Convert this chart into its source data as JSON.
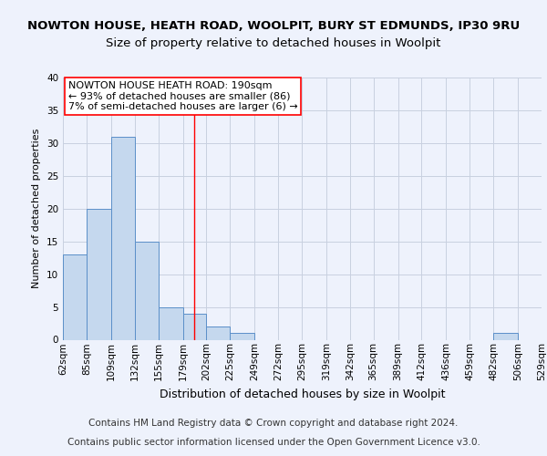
{
  "title_line1": "NOWTON HOUSE, HEATH ROAD, WOOLPIT, BURY ST EDMUNDS, IP30 9RU",
  "title_line2": "Size of property relative to detached houses in Woolpit",
  "xlabel": "Distribution of detached houses by size in Woolpit",
  "ylabel": "Number of detached properties",
  "bin_labels": [
    "62sqm",
    "85sqm",
    "109sqm",
    "132sqm",
    "155sqm",
    "179sqm",
    "202sqm",
    "225sqm",
    "249sqm",
    "272sqm",
    "295sqm",
    "319sqm",
    "342sqm",
    "365sqm",
    "389sqm",
    "412sqm",
    "436sqm",
    "459sqm",
    "482sqm",
    "506sqm",
    "529sqm"
  ],
  "bin_edges": [
    62,
    85,
    109,
    132,
    155,
    179,
    202,
    225,
    249,
    272,
    295,
    319,
    342,
    365,
    389,
    412,
    436,
    459,
    482,
    506,
    529
  ],
  "bar_heights": [
    13,
    20,
    31,
    15,
    5,
    4,
    2,
    1,
    0,
    0,
    0,
    0,
    0,
    0,
    0,
    0,
    0,
    0,
    1,
    0
  ],
  "bar_color": "#c5d8ee",
  "bar_edge_color": "#5b8fc9",
  "vline_x": 190,
  "vline_color": "red",
  "ylim": [
    0,
    40
  ],
  "yticks": [
    0,
    5,
    10,
    15,
    20,
    25,
    30,
    35,
    40
  ],
  "annotation_text": "NOWTON HOUSE HEATH ROAD: 190sqm\n← 93% of detached houses are smaller (86)\n7% of semi-detached houses are larger (6) →",
  "annotation_box_color": "white",
  "annotation_box_edge_color": "red",
  "footer_line1": "Contains HM Land Registry data © Crown copyright and database right 2024.",
  "footer_line2": "Contains public sector information licensed under the Open Government Licence v3.0.",
  "background_color": "#eef2fc",
  "grid_color": "#c8d0e0",
  "title1_fontsize": 9.5,
  "title2_fontsize": 9.5,
  "axis_label_fontsize": 9,
  "tick_fontsize": 7.5,
  "annotation_fontsize": 8,
  "footer_fontsize": 7.5,
  "ylabel_fontsize": 8
}
